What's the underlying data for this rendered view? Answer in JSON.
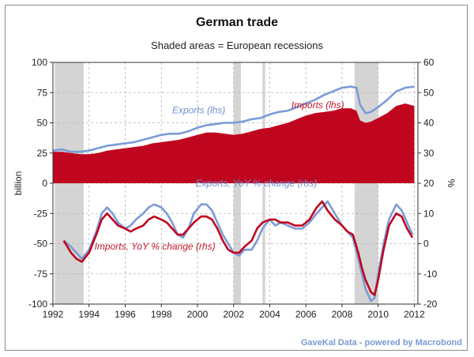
{
  "chart_data": {
    "type": "line",
    "title": "German trade",
    "subtitle": "Shaded areas = European recessions",
    "source": "GaveKal Data - powered by Macrobond",
    "ylabel_left": "billion",
    "ylabel_right": "%",
    "x_ticks": [
      "1992",
      "1994",
      "1996",
      "1998",
      "2000",
      "2002",
      "2004",
      "2006",
      "2008",
      "2010",
      "2012"
    ],
    "xlim": [
      1992,
      2012.2
    ],
    "ylim_left": [
      -100,
      100
    ],
    "yticks_left": [
      "100",
      "75",
      "50",
      "25",
      "0",
      "-25",
      "-50",
      "-75",
      "-100"
    ],
    "ylim_right": [
      -20,
      60
    ],
    "yticks_right": [
      "60",
      "50",
      "40",
      "30",
      "20",
      "10",
      "0",
      "-10",
      "-20"
    ],
    "recessions": [
      [
        1992.1,
        1993.7
      ],
      [
        2002.0,
        2002.4
      ],
      [
        2003.6,
        2003.75
      ],
      [
        2008.7,
        2010.0
      ]
    ],
    "annotations": {
      "exports_lhs": "Exports (lhs)",
      "imports_lhs": "Imports (lhs)",
      "exports_yoy": "Exports, YoY % change (rhs)",
      "imports_yoy": "Imports, YoY % change (rhs)"
    },
    "colors": {
      "exports": "#7b9bd6",
      "imports": "#c0061f",
      "recession": "#d4d4d4"
    },
    "series": [
      {
        "name": "Exports (lhs)",
        "axis": "left",
        "style": "line",
        "x": [
          1992,
          1992.5,
          1993,
          1993.5,
          1994,
          1994.5,
          1995,
          1995.5,
          1996,
          1996.5,
          1997,
          1997.5,
          1998,
          1998.5,
          1999,
          1999.5,
          2000,
          2000.5,
          2001,
          2001.5,
          2002,
          2002.5,
          2003,
          2003.5,
          2004,
          2004.5,
          2005,
          2005.5,
          2006,
          2006.5,
          2007,
          2007.5,
          2008,
          2008.5,
          2008.8,
          2009,
          2009.3,
          2009.6,
          2010,
          2010.5,
          2011,
          2011.5,
          2012
        ],
        "y": [
          27,
          28,
          26,
          26,
          27,
          29,
          31,
          32,
          33,
          34,
          36,
          38,
          40,
          41,
          41,
          43,
          46,
          48,
          49,
          50,
          50,
          51,
          53,
          54,
          57,
          59,
          60,
          63,
          66,
          69,
          73,
          76,
          79,
          80,
          79,
          65,
          58,
          59,
          63,
          69,
          76,
          79,
          80
        ]
      },
      {
        "name": "Imports (lhs)",
        "axis": "left",
        "style": "area",
        "x": [
          1992,
          1992.5,
          1993,
          1993.5,
          1994,
          1994.5,
          1995,
          1995.5,
          1996,
          1996.5,
          1997,
          1997.5,
          1998,
          1998.5,
          1999,
          1999.5,
          2000,
          2000.5,
          2001,
          2001.5,
          2002,
          2002.5,
          2003,
          2003.5,
          2004,
          2004.5,
          2005,
          2005.5,
          2006,
          2006.5,
          2007,
          2007.5,
          2008,
          2008.5,
          2008.8,
          2009,
          2009.3,
          2009.6,
          2010,
          2010.5,
          2011,
          2011.5,
          2012
        ],
        "y": [
          26,
          26,
          25,
          24,
          24,
          25,
          27,
          28,
          29,
          30,
          31,
          33,
          34,
          35,
          36,
          38,
          40,
          42,
          42,
          41,
          40,
          41,
          43,
          45,
          46,
          48,
          50,
          53,
          56,
          58,
          59,
          60,
          62,
          62,
          60,
          52,
          50,
          51,
          54,
          58,
          64,
          66,
          64
        ]
      },
      {
        "name": "Exports, YoY % change (rhs)",
        "axis": "right",
        "style": "line",
        "x": [
          1992.6,
          1993,
          1993.3,
          1993.6,
          1994,
          1994.4,
          1994.7,
          1995,
          1995.3,
          1995.6,
          1996,
          1996.3,
          1996.6,
          1997,
          1997.3,
          1997.6,
          1998,
          1998.3,
          1998.6,
          1998.9,
          1999.2,
          1999.5,
          1999.8,
          2000.2,
          2000.5,
          2000.8,
          2001.1,
          2001.4,
          2001.7,
          2002,
          2002.3,
          2002.6,
          2003,
          2003.3,
          2003.6,
          2004,
          2004.3,
          2004.6,
          2005,
          2005.4,
          2005.8,
          2006.2,
          2006.6,
          2006.9,
          2007.2,
          2007.6,
          2008,
          2008.3,
          2008.6,
          2008.9,
          2009.1,
          2009.3,
          2009.6,
          2009.8,
          2010,
          2010.3,
          2010.6,
          2011,
          2011.3,
          2011.6,
          2011.9
        ],
        "y": [
          1,
          -1,
          -3,
          -5,
          -2,
          4,
          10,
          12,
          10,
          7,
          5,
          6,
          8,
          10,
          12,
          13,
          12,
          10,
          7,
          3,
          2,
          5,
          10,
          13,
          13,
          11,
          7,
          3,
          0,
          -3,
          -4,
          -2,
          -2,
          1,
          5,
          8,
          6,
          7,
          6,
          5,
          5,
          7,
          10,
          12,
          14,
          10,
          6,
          4,
          2,
          -5,
          -10,
          -15,
          -19,
          -18,
          -10,
          0,
          8,
          13,
          11,
          7,
          3
        ]
      },
      {
        "name": "Imports, YoY % change (rhs)",
        "axis": "right",
        "style": "line",
        "x": [
          1992.6,
          1993,
          1993.3,
          1993.6,
          1994,
          1994.4,
          1994.7,
          1995,
          1995.3,
          1995.6,
          1996,
          1996.3,
          1996.6,
          1997,
          1997.3,
          1997.6,
          1998,
          1998.3,
          1998.6,
          1998.9,
          1999.2,
          1999.5,
          1999.8,
          2000.2,
          2000.5,
          2000.8,
          2001.1,
          2001.4,
          2001.7,
          2002,
          2002.3,
          2002.6,
          2003,
          2003.3,
          2003.6,
          2004,
          2004.3,
          2004.6,
          2005,
          2005.4,
          2005.8,
          2006.2,
          2006.6,
          2006.9,
          2007.2,
          2007.6,
          2008,
          2008.3,
          2008.6,
          2008.9,
          2009.1,
          2009.3,
          2009.6,
          2009.8,
          2010,
          2010.3,
          2010.6,
          2011,
          2011.3,
          2011.6,
          2011.9
        ],
        "y": [
          1,
          -3,
          -5,
          -6,
          -3,
          3,
          8,
          10,
          8,
          6,
          5,
          4,
          5,
          6,
          8,
          9,
          8,
          7,
          5,
          3,
          3,
          5,
          7,
          9,
          9,
          8,
          5,
          1,
          -2,
          -3,
          -3,
          -1,
          1,
          5,
          7,
          8,
          8,
          7,
          7,
          6,
          6,
          8,
          12,
          14,
          11,
          8,
          6,
          4,
          3,
          -3,
          -8,
          -12,
          -16,
          -17,
          -12,
          -2,
          6,
          10,
          9,
          5,
          2
        ]
      }
    ]
  }
}
